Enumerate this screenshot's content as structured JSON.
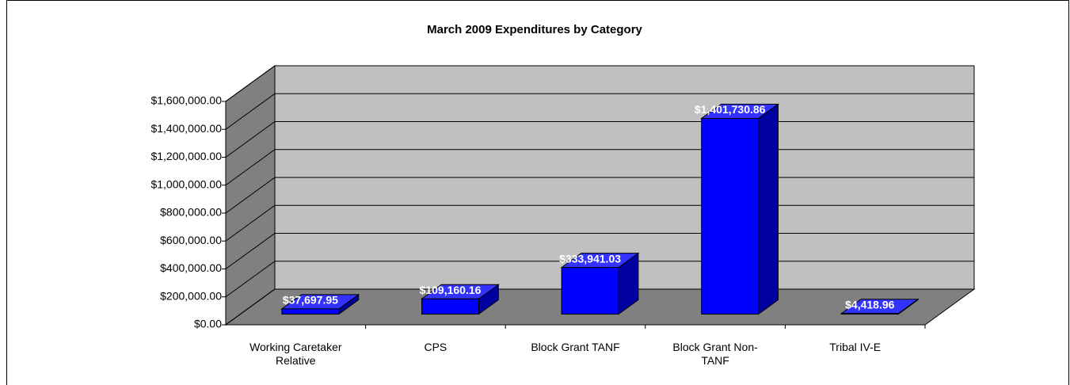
{
  "chart_data": {
    "type": "bar3d",
    "title": "March 2009 Expenditures by Category",
    "categories": [
      "Working Caretaker Relative",
      "CPS",
      "Block Grant TANF",
      "Block Grant Non-TANF",
      "Tribal IV-E"
    ],
    "values": [
      37697.95,
      109160.16,
      333941.03,
      1401730.86,
      4418.96
    ],
    "value_labels": [
      "$37,697.95",
      "$109,160.16",
      "$333,941.03",
      "$1,401,730.86",
      "$4,418.96"
    ],
    "color": "#0000ff",
    "ylim": [
      0,
      1600000
    ],
    "yticks": [
      {
        "value": 0,
        "label": "$0.00"
      },
      {
        "value": 200000,
        "label": "$200,000.00"
      },
      {
        "value": 400000,
        "label": "$400,000.00"
      },
      {
        "value": 600000,
        "label": "$600,000.00"
      },
      {
        "value": 800000,
        "label": "$800,000.00"
      },
      {
        "value": 1000000,
        "label": "$1,000,000.00"
      },
      {
        "value": 1200000,
        "label": "$1,200,000.00"
      },
      {
        "value": 1400000,
        "label": "$1,400,000.00"
      },
      {
        "value": 1600000,
        "label": "$1,600,000.00"
      }
    ],
    "grid": true
  }
}
